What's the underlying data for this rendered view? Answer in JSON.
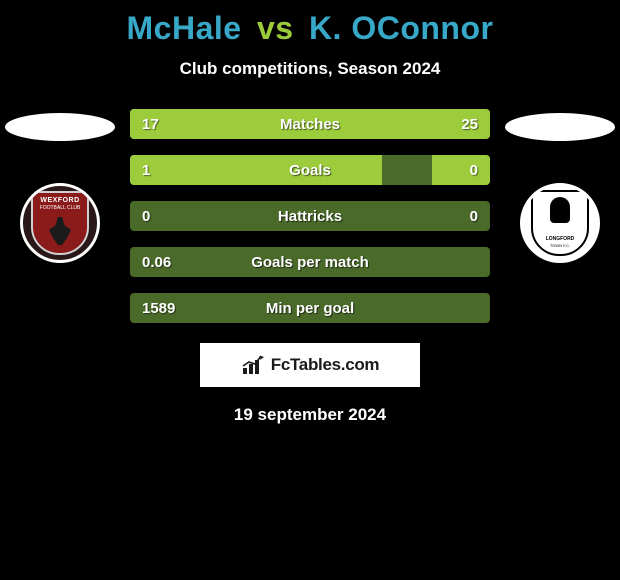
{
  "title": {
    "player1": "McHale",
    "vs": "vs",
    "player2": "K. OConnor"
  },
  "subtitle": "Club competitions, Season 2024",
  "left_badge": {
    "name": "WEXFORD",
    "sub": "FOOTBALL CLUB"
  },
  "right_badge": {
    "name": "LONGFORD",
    "sub": "TOWN F.C."
  },
  "stats": [
    {
      "left_val": "17",
      "label": "Matches",
      "right_val": "25",
      "left_pct": 40,
      "right_pct": 60
    },
    {
      "left_val": "1",
      "label": "Goals",
      "right_val": "0",
      "left_pct": 70,
      "right_pct": 16
    },
    {
      "left_val": "0",
      "label": "Hattricks",
      "right_val": "0",
      "left_pct": 0,
      "right_pct": 0
    },
    {
      "left_val": "0.06",
      "label": "Goals per match",
      "right_val": "",
      "left_pct": 0,
      "right_pct": 0
    },
    {
      "left_val": "1589",
      "label": "Min per goal",
      "right_val": "",
      "left_pct": 0,
      "right_pct": 0
    }
  ],
  "colors": {
    "title_player": "#38a8c8",
    "title_vs": "#9ccc3c",
    "bar_bg": "#4a6a2a",
    "bar_fill": "#9ccc3c",
    "background": "#000000"
  },
  "brand": "FcTables.com",
  "footer_date": "19 september 2024"
}
